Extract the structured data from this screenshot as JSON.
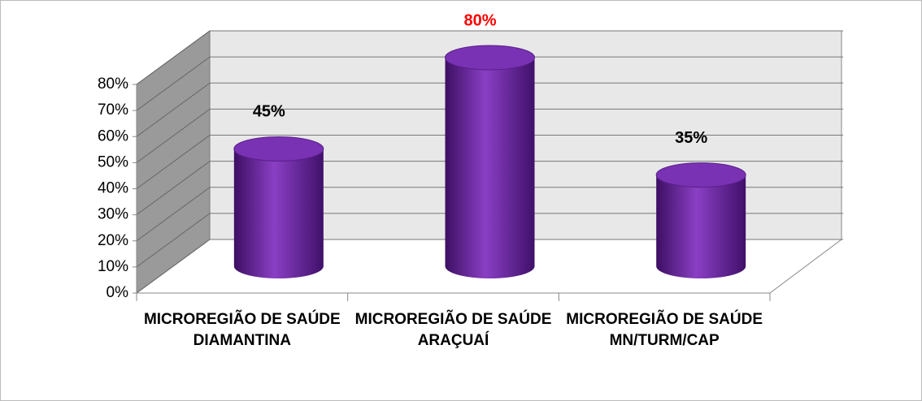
{
  "chart_data": {
    "type": "bar3d",
    "categories": [
      "MICROREGIÃO DE SAÚDE DIAMANTINA",
      "MICROREGIÃO DE SAÚDE ARAÇUAÍ",
      "MICROREGIÃO DE SAÚDE MN/TURM/CAP"
    ],
    "values": [
      45,
      80,
      35
    ],
    "value_labels": [
      "45%",
      "80%",
      "35%"
    ],
    "label_colors": [
      "#000000",
      "#ff0000",
      "#000000"
    ],
    "color": "#7030a0",
    "ylim": [
      0,
      80
    ],
    "yticks": [
      {
        "value": 0,
        "label": "0%"
      },
      {
        "value": 10,
        "label": "10%"
      },
      {
        "value": 20,
        "label": "20%"
      },
      {
        "value": 30,
        "label": "30%"
      },
      {
        "value": 40,
        "label": "40%"
      },
      {
        "value": 50,
        "label": "50%"
      },
      {
        "value": 60,
        "label": "60%"
      },
      {
        "value": 70,
        "label": "70%"
      },
      {
        "value": 80,
        "label": "80%"
      }
    ],
    "grid": true
  }
}
